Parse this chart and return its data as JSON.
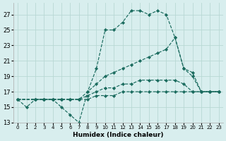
{
  "xlabel": "Humidex (Indice chaleur)",
  "bg_color": "#d8eeee",
  "grid_color": "#b8d8d4",
  "line_color": "#1a6b5e",
  "xlim": [
    -0.5,
    23.5
  ],
  "ylim": [
    13,
    28.5
  ],
  "xticks": [
    0,
    1,
    2,
    3,
    4,
    5,
    6,
    7,
    8,
    9,
    10,
    11,
    12,
    13,
    14,
    15,
    16,
    17,
    18,
    19,
    20,
    21,
    22,
    23
  ],
  "yticks": [
    13,
    15,
    17,
    19,
    21,
    23,
    25,
    27
  ],
  "line1_x": [
    0,
    1,
    2,
    3,
    4,
    5,
    6,
    7,
    8,
    9,
    10,
    11,
    12,
    13,
    14,
    15,
    16,
    17,
    18,
    19,
    20,
    21,
    22,
    23
  ],
  "line1_y": [
    16,
    15,
    16,
    16,
    16,
    15,
    14,
    13,
    17,
    20,
    25,
    25,
    26,
    27.5,
    27.5,
    27,
    27.5,
    27,
    24,
    20,
    19,
    17,
    17,
    17
  ],
  "line2_x": [
    0,
    2,
    3,
    4,
    5,
    6,
    7,
    8,
    9,
    10,
    11,
    12,
    13,
    14,
    15,
    16,
    17,
    18,
    19,
    20,
    21,
    22,
    23
  ],
  "line2_y": [
    16,
    16,
    16,
    16,
    16,
    16,
    16,
    17,
    18,
    19,
    19.5,
    20,
    20.5,
    21,
    21.5,
    22,
    22.5,
    24,
    20,
    19.5,
    17,
    17,
    17
  ],
  "line3_x": [
    0,
    2,
    3,
    4,
    5,
    6,
    7,
    8,
    9,
    10,
    11,
    12,
    13,
    14,
    15,
    16,
    17,
    18,
    19,
    20,
    21,
    22,
    23
  ],
  "line3_y": [
    16,
    16,
    16,
    16,
    16,
    16,
    16,
    16.5,
    17,
    17.5,
    17.5,
    18,
    18,
    18.5,
    18.5,
    18.5,
    18.5,
    18.5,
    18,
    17,
    17,
    17,
    17
  ],
  "line4_x": [
    0,
    2,
    3,
    4,
    5,
    6,
    7,
    8,
    9,
    10,
    11,
    12,
    13,
    14,
    15,
    16,
    17,
    18,
    19,
    20,
    21,
    22,
    23
  ],
  "line4_y": [
    16,
    16,
    16,
    16,
    16,
    16,
    16,
    16,
    16.5,
    16.5,
    16.5,
    17,
    17,
    17,
    17,
    17,
    17,
    17,
    17,
    17,
    17,
    17,
    17
  ]
}
